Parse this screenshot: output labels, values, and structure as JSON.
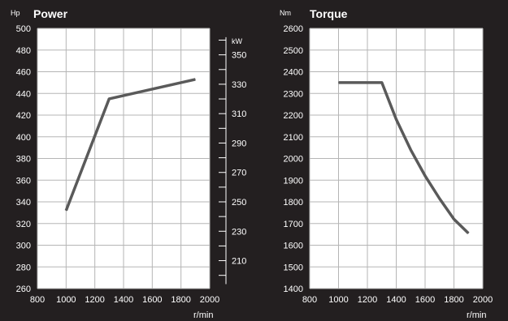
{
  "colors": {
    "background": "#231f20",
    "plot_area": "#ffffff",
    "grid": "#b5b5b5",
    "line": "#5a5a5a",
    "text": "#ffffff"
  },
  "chart_data": [
    {
      "type": "line",
      "title": "Power",
      "ylabel": "Hp",
      "xlabel": "r/min",
      "secondary_ylabel": "kW",
      "x": [
        1000,
        1300,
        1900
      ],
      "series": [
        {
          "values": [
            332,
            435,
            453
          ]
        }
      ],
      "xlim": [
        800,
        2000
      ],
      "ylim": [
        260,
        500
      ],
      "x_ticks": [
        800,
        1000,
        1200,
        1400,
        1600,
        1800,
        2000
      ],
      "y_ticks": [
        260,
        280,
        300,
        320,
        340,
        360,
        380,
        400,
        420,
        440,
        460,
        480,
        500
      ],
      "secondary_y_ticks": [
        210,
        230,
        250,
        270,
        290,
        310,
        330,
        350
      ],
      "secondary_ylim": [
        191,
        368
      ],
      "grid": true
    },
    {
      "type": "line",
      "title": "Torque",
      "ylabel": "Nm",
      "xlabel": "r/min",
      "x": [
        1000,
        1300,
        1400,
        1500,
        1600,
        1700,
        1800,
        1900
      ],
      "series": [
        {
          "values": [
            2350,
            2350,
            2180,
            2040,
            1920,
            1815,
            1720,
            1655
          ]
        }
      ],
      "xlim": [
        800,
        2000
      ],
      "ylim": [
        1400,
        2600
      ],
      "x_ticks": [
        800,
        1000,
        1200,
        1400,
        1600,
        1800,
        2000
      ],
      "y_ticks": [
        1400,
        1500,
        1600,
        1700,
        1800,
        1900,
        2000,
        2100,
        2200,
        2300,
        2400,
        2500,
        2600
      ],
      "grid": true
    }
  ]
}
